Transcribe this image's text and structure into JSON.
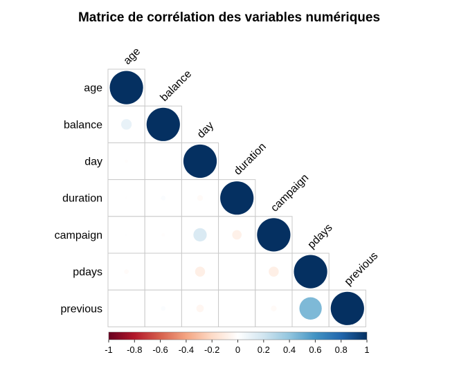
{
  "chart_data": {
    "type": "heatmap",
    "title": "Matrice de corrélation des variables numériques",
    "variables": [
      "age",
      "balance",
      "day",
      "duration",
      "campaign",
      "pdays",
      "previous"
    ],
    "matrix": [
      [
        1.0,
        0.1,
        -0.01,
        -0.005,
        0.005,
        -0.02,
        0.0
      ],
      [
        0.1,
        1.0,
        0.0,
        0.02,
        -0.01,
        0.0,
        0.02
      ],
      [
        -0.01,
        0.0,
        1.0,
        -0.03,
        0.16,
        -0.09,
        -0.05
      ],
      [
        -0.005,
        0.02,
        -0.03,
        1.0,
        -0.08,
        0.0,
        0.0
      ],
      [
        0.005,
        -0.01,
        0.16,
        -0.08,
        1.0,
        -0.09,
        -0.03
      ],
      [
        -0.02,
        0.0,
        -0.09,
        0.0,
        -0.09,
        1.0,
        0.45
      ],
      [
        0.0,
        0.02,
        -0.05,
        0.0,
        -0.03,
        0.45,
        1.0
      ]
    ],
    "display": "lower-triangle-circles",
    "colorbar": {
      "range": [
        -1,
        1
      ],
      "ticks": [
        "-1",
        "-0.8",
        "-0.6",
        "-0.4",
        "-0.2",
        "0",
        "0.2",
        "0.4",
        "0.6",
        "0.8",
        "1"
      ],
      "placement": "bottom"
    },
    "colors": {
      "negative_strong": "#67001f",
      "neutral": "#ffffff",
      "positive_strong": "#053061",
      "grid": "#c9c9c9"
    }
  }
}
